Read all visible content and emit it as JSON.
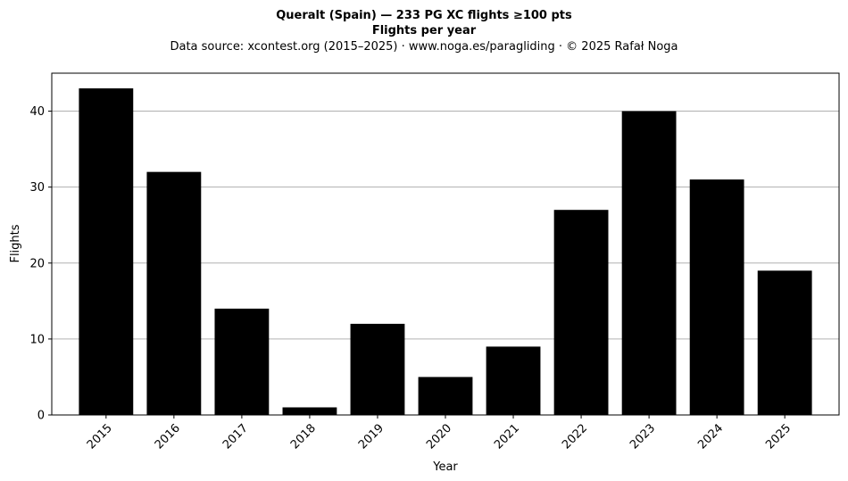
{
  "chart_data": {
    "type": "bar",
    "title": "Queralt (Spain)  —  233 PG XC flights ≥100 pts",
    "title2": "Flights per year",
    "subtitle": "Data source: xcontest.org (2015–2025)  ·  www.noga.es/paragliding  ·  © 2025 Rafał Noga",
    "xlabel": "Year",
    "ylabel": "Flights",
    "categories": [
      "2015",
      "2016",
      "2017",
      "2018",
      "2019",
      "2020",
      "2021",
      "2022",
      "2023",
      "2024",
      "2025"
    ],
    "values": [
      43,
      32,
      14,
      1,
      12,
      5,
      9,
      27,
      40,
      31,
      19
    ],
    "ylim": [
      0,
      45
    ],
    "yticks": [
      0,
      10,
      20,
      30,
      40
    ],
    "grid": "y",
    "bar_color": "#000000",
    "grid_color": "#b0b0b0",
    "x_tick_rotation": "45"
  }
}
